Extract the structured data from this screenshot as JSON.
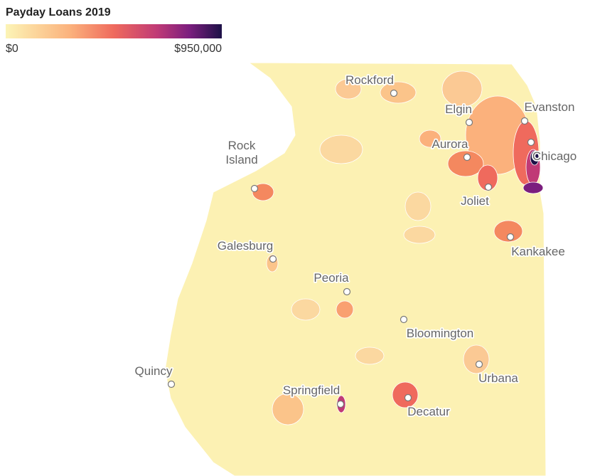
{
  "title": "Payday Loans 2019",
  "legend": {
    "min": {
      "value": 0,
      "label": "$0"
    },
    "max": {
      "value": 950000,
      "label": "$950,000"
    }
  },
  "cities": [
    {
      "lines": [
        "Rockford"
      ]
    },
    {
      "lines": [
        "Elgin"
      ]
    },
    {
      "lines": [
        "Evanston"
      ]
    },
    {
      "lines": [
        "Aurora"
      ]
    },
    {
      "lines": [
        "Chicago"
      ]
    },
    {
      "lines": [
        "Rock",
        "Island"
      ]
    },
    {
      "lines": [
        "Joliet"
      ]
    },
    {
      "lines": [
        "Kankakee"
      ]
    },
    {
      "lines": [
        "Galesburg"
      ]
    },
    {
      "lines": [
        "Peoria"
      ]
    },
    {
      "lines": [
        "Bloomington"
      ]
    },
    {
      "lines": [
        "Quincy"
      ]
    },
    {
      "lines": [
        "Urbana"
      ]
    },
    {
      "lines": [
        "Springfield"
      ]
    },
    {
      "lines": [
        "Decatur"
      ]
    }
  ]
}
